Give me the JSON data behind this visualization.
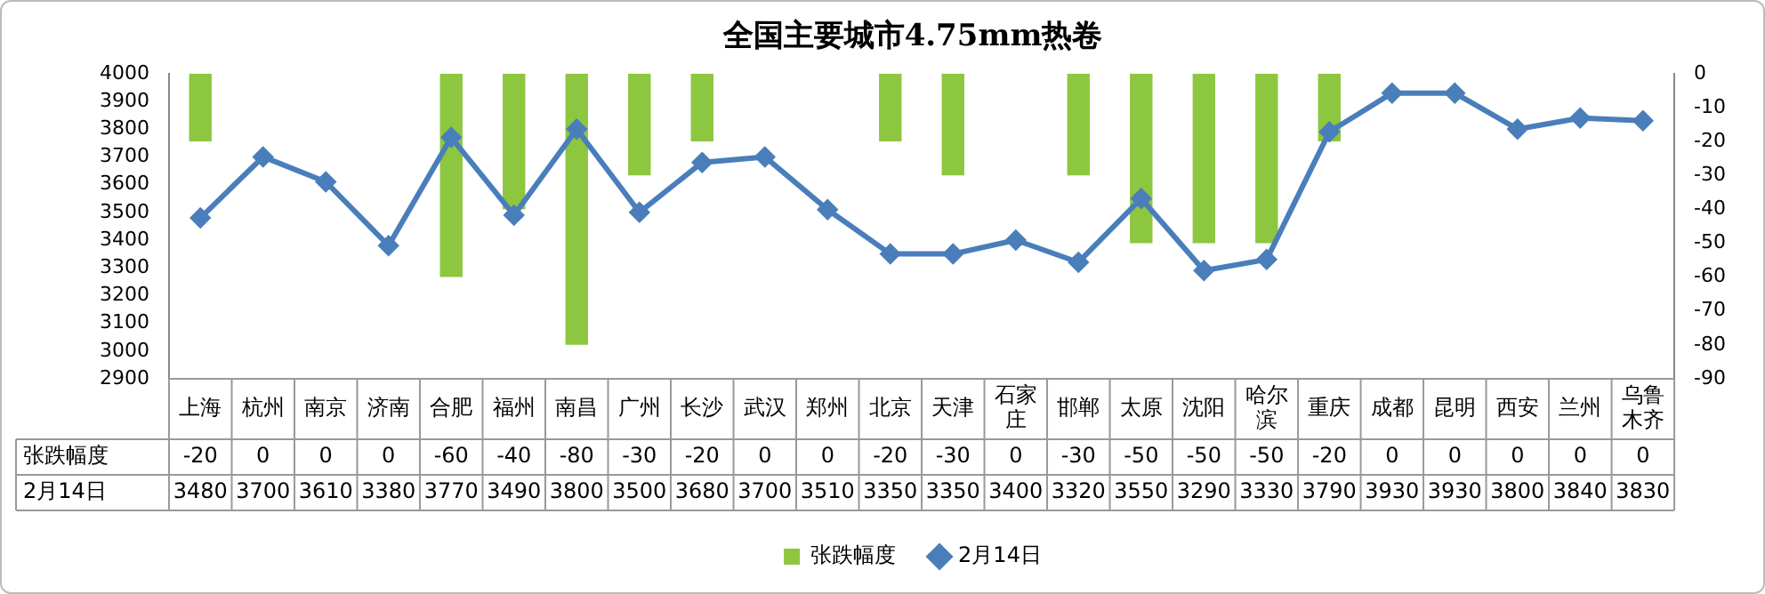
{
  "chart_data": {
    "type": "bar",
    "title": "全国主要城市4.75mm热卷",
    "categories": [
      "上海",
      "杭州",
      "南京",
      "济南",
      "合肥",
      "福州",
      "南昌",
      "广州",
      "长沙",
      "武汉",
      "郑州",
      "北京",
      "天津",
      "石家庄",
      "邯郸",
      "太原",
      "沈阳",
      "哈尔滨",
      "重庆",
      "成都",
      "昆明",
      "西安",
      "兰州",
      "乌鲁木齐"
    ],
    "series": [
      {
        "name": "张跌幅度",
        "axis": "y2",
        "color": "#8dc63f",
        "values": [
          -20,
          0,
          0,
          0,
          -60,
          -40,
          -80,
          -30,
          -20,
          0,
          0,
          -20,
          -30,
          0,
          -30,
          -50,
          -50,
          -50,
          -20,
          0,
          0,
          0,
          0,
          0
        ]
      },
      {
        "name": "2月14日",
        "type": "line",
        "axis": "y",
        "color": "#4a7ebb",
        "values": [
          3480,
          3700,
          3610,
          3380,
          3770,
          3490,
          3800,
          3500,
          3680,
          3700,
          3510,
          3350,
          3350,
          3400,
          3320,
          3550,
          3290,
          3330,
          3790,
          3930,
          3930,
          3800,
          3840,
          3830
        ]
      }
    ],
    "ylim": [
      2900,
      4000
    ],
    "yticks": [
      2900,
      3000,
      3100,
      3200,
      3300,
      3400,
      3500,
      3600,
      3700,
      3800,
      3900,
      4000
    ],
    "y2lim": [
      -90,
      0
    ],
    "y2ticks": [
      -90,
      -80,
      -70,
      -60,
      -50,
      -40,
      -30,
      -20,
      -10,
      0
    ],
    "legend": "bottom",
    "marker": "diamond",
    "data_labels": true
  }
}
